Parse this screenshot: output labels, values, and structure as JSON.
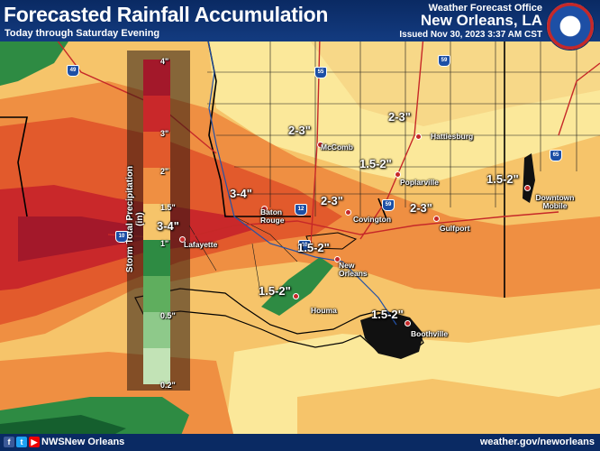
{
  "header": {
    "title": "Forecasted Rainfall Accumulation",
    "subtitle": "Today through Saturday Evening",
    "office_line": "Weather Forecast Office",
    "office_name": "New Orleans, LA",
    "issued": "Issued Nov 30, 2023 3:37 AM CST"
  },
  "legend": {
    "title": "Storm Total Precipitation (in)",
    "labels": [
      "4\"",
      "3\"",
      "2\"",
      "1.5\"",
      "1\"",
      "0.5\"",
      "0.2\""
    ]
  },
  "cities": [
    {
      "id": "mccomb",
      "name": "McComb"
    },
    {
      "id": "hattiesburg",
      "name": "Hattiesburg"
    },
    {
      "id": "poplarville",
      "name": "Poplarville"
    },
    {
      "id": "batonrouge",
      "name": "Baton Rouge"
    },
    {
      "id": "covington",
      "name": "Covington"
    },
    {
      "id": "gulfport",
      "name": "Gulfport"
    },
    {
      "id": "lafayette",
      "name": "Lafayette"
    },
    {
      "id": "neworleans",
      "name": "New Orleans"
    },
    {
      "id": "houma",
      "name": "Houma"
    },
    {
      "id": "boothville",
      "name": "Boothville"
    },
    {
      "id": "mobile",
      "name": "Downtown Mobile"
    }
  ],
  "amounts": [
    "2-3\"",
    "2-3\"",
    "1.5-2\"",
    "1.5-2\"",
    "3-4\"",
    "2-3\"",
    "2-3\"",
    "3-4\"",
    "1.5-2\"",
    "1.5-2\"",
    "1.5-2\""
  ],
  "highways": [
    "49",
    "55",
    "59",
    "12",
    "59",
    "65",
    "10",
    "10"
  ],
  "footer": {
    "handle": "NWSNew Orleans",
    "website": "weather.gov/neworleans"
  },
  "colors": {
    "light_yellow": "#fbe89a",
    "yellow_orange": "#f6c46a",
    "orange": "#ef8f42",
    "red_orange": "#e25a2c",
    "red": "#c9282a",
    "dark_red": "#a3182a",
    "green": "#2e8b43",
    "dark_green": "#155f2e",
    "header_bg": "#0a2a63"
  }
}
